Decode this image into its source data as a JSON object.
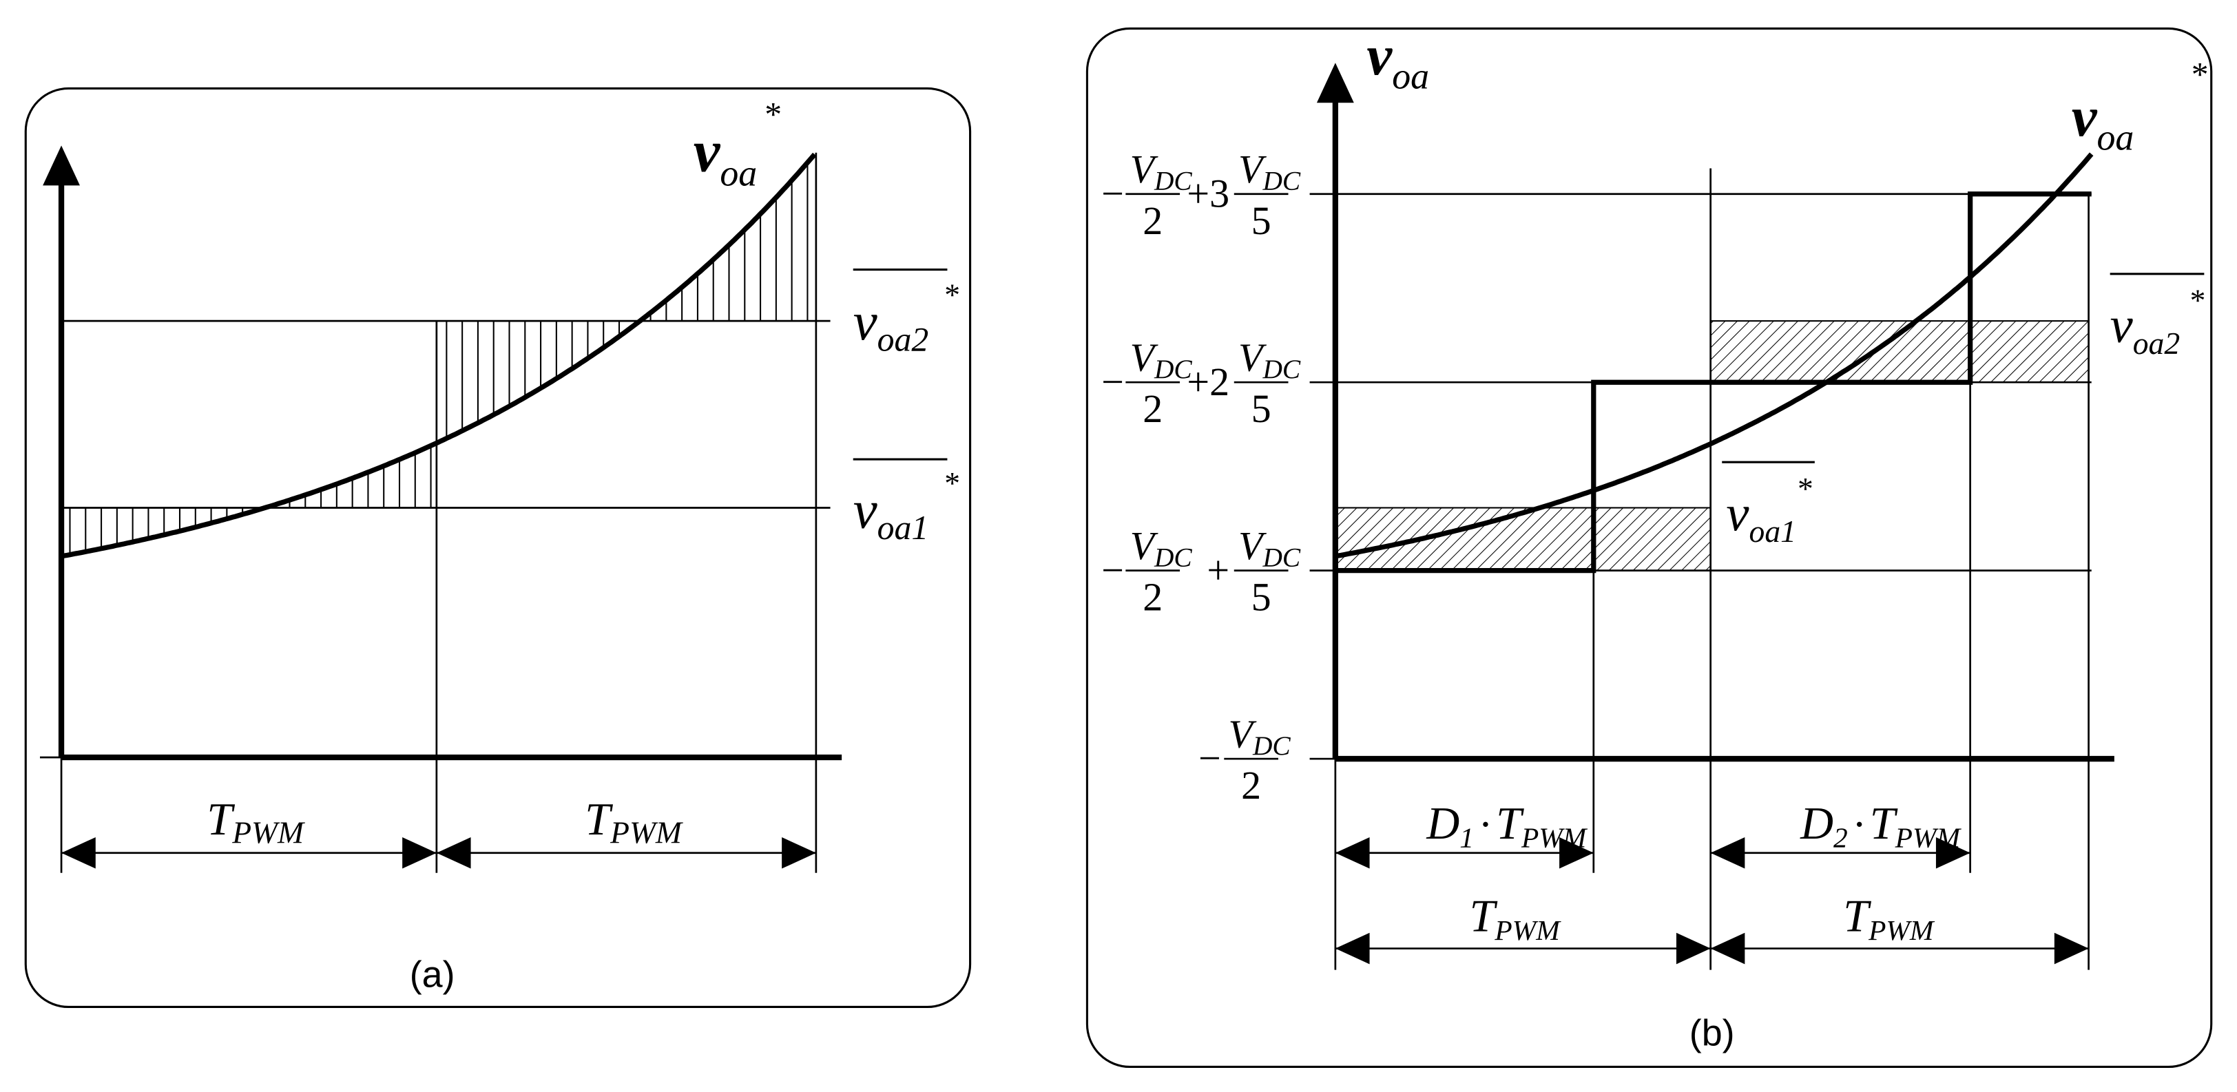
{
  "panel_a": {
    "caption": "(a)",
    "curve_label": {
      "main": "v",
      "sub": "oa",
      "sup": "*"
    },
    "avg2_label": {
      "main": "v",
      "sub": "oa2",
      "sup": "*"
    },
    "avg1_label": {
      "main": "v",
      "sub": "oa1",
      "sup": "*"
    },
    "period_labels": [
      {
        "main": "T",
        "sub": "PWM"
      },
      {
        "main": "T",
        "sub": "PWM"
      }
    ],
    "hatch_style": "vertical"
  },
  "panel_b": {
    "caption": "(b)",
    "axis_label": {
      "main": "v",
      "sub": "oa"
    },
    "curve_label": {
      "main": "v",
      "sub": "oa",
      "sup": "*"
    },
    "avg2_label": {
      "main": "v",
      "sub": "oa2",
      "sup": "*"
    },
    "avg1_label": {
      "main": "v",
      "sub": "oa1",
      "sup": "*"
    },
    "levels": [
      {
        "lead": "−",
        "num": "V",
        "num_sub": "DC",
        "den": "2",
        "op": "+3",
        "num2": "V",
        "num2_sub": "DC",
        "den2": "5"
      },
      {
        "lead": "−",
        "num": "V",
        "num_sub": "DC",
        "den": "2",
        "op": "+2",
        "num2": "V",
        "num2_sub": "DC",
        "den2": "5"
      },
      {
        "lead": "−",
        "num": "V",
        "num_sub": "DC",
        "den": "2",
        "op": "+",
        "num2": "V",
        "num2_sub": "DC",
        "den2": "5"
      },
      {
        "lead": "−",
        "num": "V",
        "num_sub": "DC",
        "den": "2"
      }
    ],
    "duty_labels": [
      {
        "main": "D",
        "main_sub": "1",
        "dot": "·",
        "t": "T",
        "sub": "PWM"
      },
      {
        "main": "D",
        "main_sub": "2",
        "dot": "·",
        "t": "T",
        "sub": "PWM"
      }
    ],
    "period_labels": [
      {
        "main": "T",
        "sub": "PWM"
      },
      {
        "main": "T",
        "sub": "PWM"
      }
    ],
    "hatch_style": "diagonal"
  }
}
